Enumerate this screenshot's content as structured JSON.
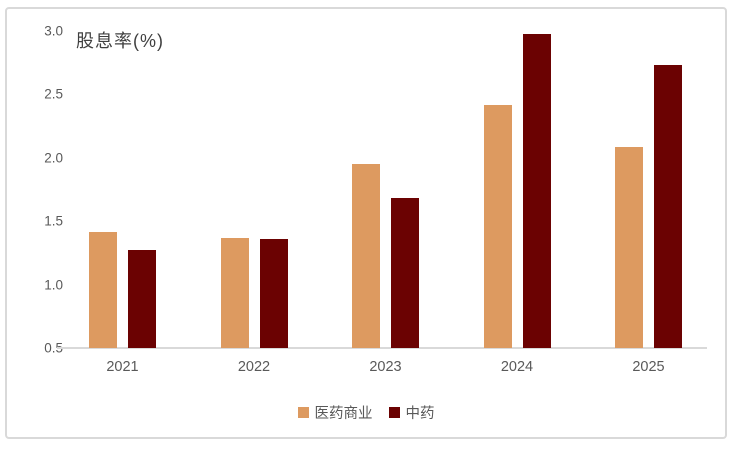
{
  "chart_data": {
    "type": "bar",
    "title": "股息率(%)",
    "categories": [
      "2021",
      "2022",
      "2023",
      "2024",
      "2025"
    ],
    "series": [
      {
        "name": "医药商业",
        "color": "#DD9A60",
        "values": [
          1.41,
          1.37,
          1.95,
          2.41,
          2.08
        ]
      },
      {
        "name": "中药",
        "color": "#6B0202",
        "values": [
          1.27,
          1.36,
          1.68,
          2.97,
          2.73
        ]
      }
    ],
    "ylim": [
      0.5,
      3.0
    ],
    "ytick_step": 0.5,
    "ytick_labels": [
      "3.0",
      "2.5",
      "2.0",
      "1.5",
      "1.0",
      "0.5"
    ],
    "xlabel": "",
    "ylabel": "",
    "grid": false,
    "legend_position": "bottom",
    "axis_color": "#D9D9D9",
    "tick_text_color": "#595959",
    "title_color": "#3F3F3F"
  }
}
